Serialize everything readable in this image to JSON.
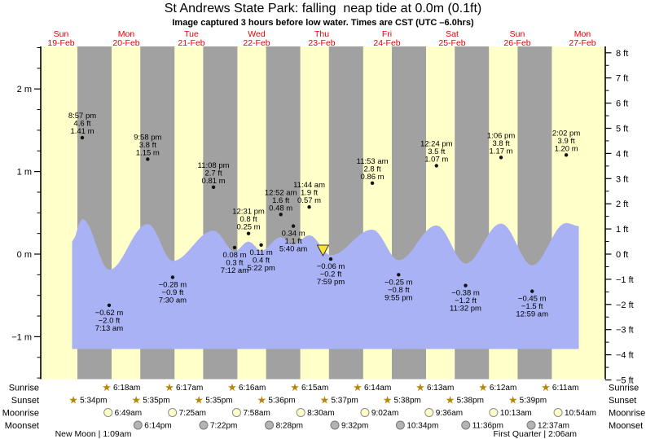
{
  "title": "St Andrews State Park: falling  neap tide at 0.0m (0.1ft)",
  "subtitle": "Image captured 3 hours before low water. Times are CST (UTC –6.0hrs)",
  "days": [
    {
      "name": "Sun",
      "date": "19-Feb"
    },
    {
      "name": "Mon",
      "date": "20-Feb"
    },
    {
      "name": "Tue",
      "date": "21-Feb"
    },
    {
      "name": "Wed",
      "date": "22-Feb"
    },
    {
      "name": "Thu",
      "date": "23-Feb"
    },
    {
      "name": "Fri",
      "date": "24-Feb"
    },
    {
      "name": "Sat",
      "date": "25-Feb"
    },
    {
      "name": "Sun",
      "date": "26-Feb"
    },
    {
      "name": "Mon",
      "date": "27-Feb"
    }
  ],
  "axes": {
    "left_ticks": [
      {
        "label": "2 m",
        "v": 2
      },
      {
        "label": "1 m",
        "v": 1
      },
      {
        "label": "0 m",
        "v": 0
      },
      {
        "label": "−1 m",
        "v": -1
      }
    ],
    "right_ticks": [
      {
        "label": "8 ft",
        "v": 8
      },
      {
        "label": "7 ft",
        "v": 7
      },
      {
        "label": "6 ft",
        "v": 6
      },
      {
        "label": "5 ft",
        "v": 5
      },
      {
        "label": "4 ft",
        "v": 4
      },
      {
        "label": "3 ft",
        "v": 3
      },
      {
        "label": "2 ft",
        "v": 2
      },
      {
        "label": "1 ft",
        "v": 1
      },
      {
        "label": "0 ft",
        "v": 0
      },
      {
        "label": "−1 ft",
        "v": -1
      },
      {
        "label": "−2 ft",
        "v": -2
      },
      {
        "label": "−3 ft",
        "v": -3
      },
      {
        "label": "−4 ft",
        "v": -4
      },
      {
        "label": "−5 ft",
        "v": -5
      }
    ]
  },
  "chart_data": {
    "type": "area",
    "title": "St Andrews State Park tide heights, 19-Feb to 27-Feb",
    "y_axis_left": {
      "unit": "m",
      "range": [
        -1.5,
        2.5
      ]
    },
    "y_axis_right": {
      "unit": "ft",
      "range": [
        -5,
        8
      ]
    },
    "grid": false,
    "legend": "none",
    "colors": {
      "daylight_band": "#ffffc9",
      "night_band": "#a1a1a1",
      "tide_area": "#a9b2f4",
      "day_label": "#e60000",
      "sun_star": "#b8860b",
      "marker_triangle": "#ffe135"
    },
    "tide_events": [
      {
        "type": "high",
        "time": "8:57 pm",
        "ft": "4.6 ft",
        "m": "1.41 m",
        "t": 14.95,
        "val": 1.41
      },
      {
        "type": "low",
        "m": "−0.62 m",
        "ft": "−2.0 ft",
        "time": "7:13 am",
        "t": 25.22,
        "val": -0.62
      },
      {
        "type": "high",
        "time": "9:58 pm",
        "ft": "3.8 ft",
        "m": "1.15 m",
        "t": 39.97,
        "val": 1.15
      },
      {
        "type": "low",
        "m": "−0.28 m",
        "ft": "−0.9 ft",
        "time": "7:30 am",
        "t": 49.5,
        "val": -0.28
      },
      {
        "type": "high",
        "time": "11:08 pm",
        "ft": "2.7 ft",
        "m": "0.81 m",
        "t": 65.13,
        "val": 0.81
      },
      {
        "type": "low",
        "m": "0.08 m",
        "ft": "0.3 ft",
        "time": "7:12 am",
        "t": 73.2,
        "val": 0.08
      },
      {
        "type": "high",
        "time": "12:31 pm",
        "ft": "0.8 ft",
        "m": "0.25 m",
        "t": 78.52,
        "val": 0.25
      },
      {
        "type": "low",
        "m": "0.11 m",
        "ft": "0.4 ft",
        "time": "5:22 pm",
        "t": 83.37,
        "val": 0.11
      },
      {
        "type": "high",
        "time": "12:52 am",
        "ft": "1.6 ft",
        "m": "0.48 m",
        "t": 90.87,
        "val": 0.48
      },
      {
        "type": "low",
        "m": "0.34 m",
        "ft": "1.1 ft",
        "time": "5:40 am",
        "t": 95.67,
        "val": 0.34
      },
      {
        "type": "high",
        "time": "11:44 am",
        "ft": "1.9 ft",
        "m": "0.57 m",
        "t": 101.73,
        "val": 0.57
      },
      {
        "type": "low",
        "m": "−0.06 m",
        "ft": "−0.2 ft",
        "time": "7:59 pm",
        "t": 109.98,
        "val": -0.06
      },
      {
        "type": "high",
        "time": "11:53 am",
        "ft": "2.8 ft",
        "m": "0.86 m",
        "t": 125.88,
        "val": 0.86
      },
      {
        "type": "low",
        "m": "−0.25 m",
        "ft": "−0.8 ft",
        "time": "9:55 pm",
        "t": 135.92,
        "val": -0.25
      },
      {
        "type": "high",
        "time": "12:24 pm",
        "ft": "3.5 ft",
        "m": "1.07 m",
        "t": 150.4,
        "val": 1.07
      },
      {
        "type": "low",
        "m": "−0.38 m",
        "ft": "−1.2 ft",
        "time": "11:32 pm",
        "t": 161.53,
        "val": -0.38
      },
      {
        "type": "high",
        "time": "1:06 pm",
        "ft": "3.8 ft",
        "m": "1.17 m",
        "t": 175.1,
        "val": 1.17
      },
      {
        "type": "low",
        "m": "−0.45 m",
        "ft": "−1.5 ft",
        "time": "12:59 am",
        "t": 186.98,
        "val": -0.45
      },
      {
        "type": "high",
        "time": "2:02 pm",
        "ft": "3.9 ft",
        "m": "1.20 m",
        "t": 200.03,
        "val": 1.2
      }
    ],
    "current_marker": {
      "symbol": "yellow-triangle",
      "t": 107.0
    }
  },
  "astro": {
    "rows": [
      {
        "label": "Sunrise",
        "icon": "star",
        "items": [
          {
            "time": "6:18am",
            "t": 24.3
          },
          {
            "time": "6:17am",
            "t": 48.28
          },
          {
            "time": "6:16am",
            "t": 72.27
          },
          {
            "time": "6:15am",
            "t": 96.25
          },
          {
            "time": "6:14am",
            "t": 120.23
          },
          {
            "time": "6:13am",
            "t": 144.22
          },
          {
            "time": "6:12am",
            "t": 168.2
          },
          {
            "time": "6:11am",
            "t": 192.18
          }
        ]
      },
      {
        "label": "Sunset",
        "icon": "star",
        "items": [
          {
            "time": "5:34pm",
            "t": 11.57
          },
          {
            "time": "5:35pm",
            "t": 35.58
          },
          {
            "time": "5:35pm",
            "t": 59.58
          },
          {
            "time": "5:36pm",
            "t": 83.6
          },
          {
            "time": "5:37pm",
            "t": 107.62
          },
          {
            "time": "5:38pm",
            "t": 131.63
          },
          {
            "time": "5:38pm",
            "t": 155.63
          },
          {
            "time": "5:39pm",
            "t": 179.65
          }
        ]
      },
      {
        "label": "Moonrise",
        "icon": "moon-light",
        "items": [
          {
            "time": "6:49am",
            "t": 24.82
          },
          {
            "time": "7:25am",
            "t": 49.42
          },
          {
            "time": "7:58am",
            "t": 73.97
          },
          {
            "time": "8:30am",
            "t": 98.5
          },
          {
            "time": "9:02am",
            "t": 123.03
          },
          {
            "time": "9:36am",
            "t": 147.6
          },
          {
            "time": "10:13am",
            "t": 172.22
          },
          {
            "time": "10:54am",
            "t": 196.9
          }
        ]
      },
      {
        "label": "Moonset",
        "icon": "moon-dark",
        "items": [
          {
            "time": "6:14pm",
            "t": 36.23
          },
          {
            "time": "7:22pm",
            "t": 61.37
          },
          {
            "time": "8:28pm",
            "t": 86.47
          },
          {
            "time": "9:32pm",
            "t": 111.53
          },
          {
            "time": "10:34pm",
            "t": 136.57
          },
          {
            "time": "11:36pm",
            "t": 161.6
          },
          {
            "time": "12:37am",
            "t": 186.62
          }
        ]
      }
    ],
    "moon_phases": [
      {
        "text": "New Moon | 1:09am",
        "t": 19.15
      },
      {
        "text": "First Quarter | 2:06am",
        "t": 188.1
      }
    ]
  }
}
